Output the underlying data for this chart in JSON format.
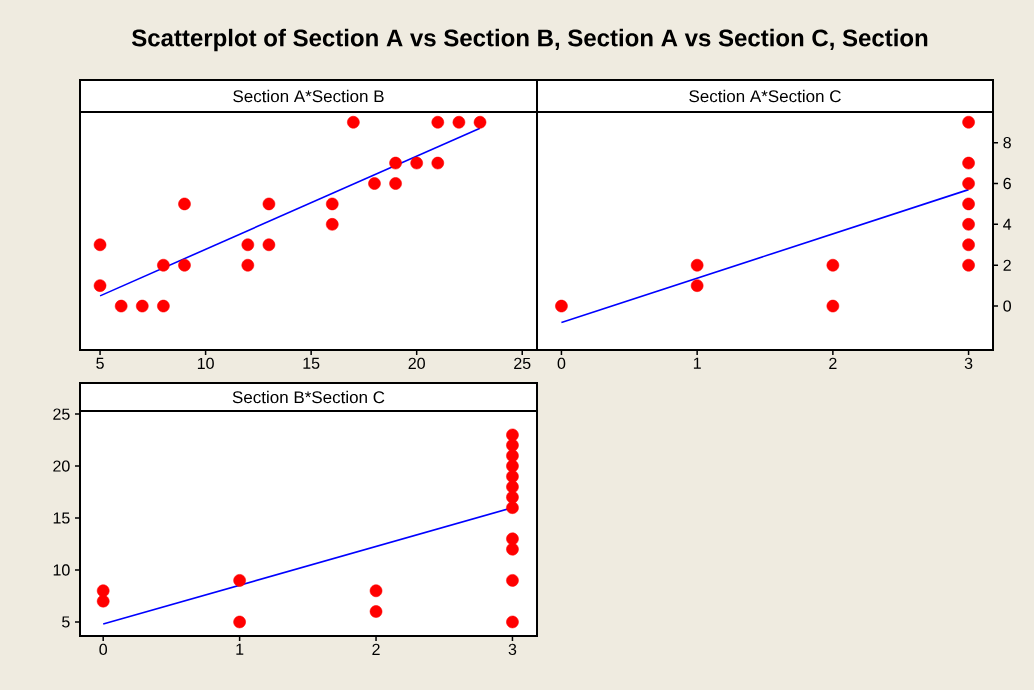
{
  "chart_data": [
    {
      "type": "scatter",
      "title": "Scatterplot of Section A vs Section B, Section A vs Section C, Section",
      "subtitle": "Section A*Section B",
      "xlim": [
        4.05,
        25.7
      ],
      "ylim": [
        -2.15,
        9.5
      ],
      "xticks": [
        5,
        10,
        15,
        20,
        25
      ],
      "tick_labels": "x",
      "marker": "circle",
      "series": [
        {
          "color": "#ff0000",
          "x": [
            5,
            5,
            6,
            7,
            8,
            8,
            9,
            9,
            12,
            12,
            13,
            13,
            16,
            16,
            17,
            18,
            19,
            19,
            20,
            21,
            21,
            22,
            23
          ],
          "values": [
            3,
            1,
            0,
            0,
            0,
            2,
            2,
            5,
            3,
            2,
            5,
            3,
            5,
            4,
            9,
            6,
            7,
            6,
            7,
            7,
            9,
            9,
            9
          ]
        },
        {
          "type": "line",
          "marker": "none",
          "color": "#0000ff",
          "x": [
            5,
            23
          ],
          "values": [
            0.5,
            8.7
          ]
        }
      ]
    },
    {
      "type": "scatter",
      "title": "Section A*Section C",
      "xlim": [
        -0.18,
        3.18
      ],
      "ylim": [
        -2.15,
        9.5
      ],
      "xticks": [
        0,
        1,
        2,
        3
      ],
      "yticks": [
        0,
        2,
        4,
        6,
        8
      ],
      "marker": "circle",
      "series": [
        {
          "color": "#ff0000",
          "x": [
            0,
            1,
            1,
            2,
            2,
            3,
            3,
            3,
            3,
            3,
            3,
            3
          ],
          "values": [
            0,
            2,
            1,
            2,
            0,
            9,
            7,
            6,
            5,
            4,
            3,
            2
          ]
        },
        {
          "type": "line",
          "marker": "none",
          "color": "#0000ff",
          "x": [
            0,
            3
          ],
          "values": [
            -0.8,
            5.7
          ]
        }
      ]
    },
    {
      "type": "scatter",
      "title": "Section B*Section C",
      "xlim": [
        -0.17,
        3.18
      ],
      "ylim": [
        3.65,
        25.3
      ],
      "xticks": [
        0,
        1,
        2,
        3
      ],
      "yticks": [
        5,
        10,
        15,
        20,
        25
      ],
      "marker": "circle",
      "series": [
        {
          "color": "#ff0000",
          "x": [
            0,
            0,
            1,
            1,
            2,
            2,
            3,
            3,
            3,
            3,
            3,
            3,
            3,
            3,
            3,
            3,
            3,
            3
          ],
          "values": [
            8,
            7,
            9,
            5,
            8,
            6,
            23,
            22,
            21,
            20,
            19,
            18,
            17,
            16,
            13,
            12,
            9,
            5
          ]
        },
        {
          "type": "line",
          "marker": "none",
          "color": "#0000ff",
          "x": [
            0,
            3
          ],
          "values": [
            4.8,
            16.0
          ]
        }
      ]
    }
  ]
}
